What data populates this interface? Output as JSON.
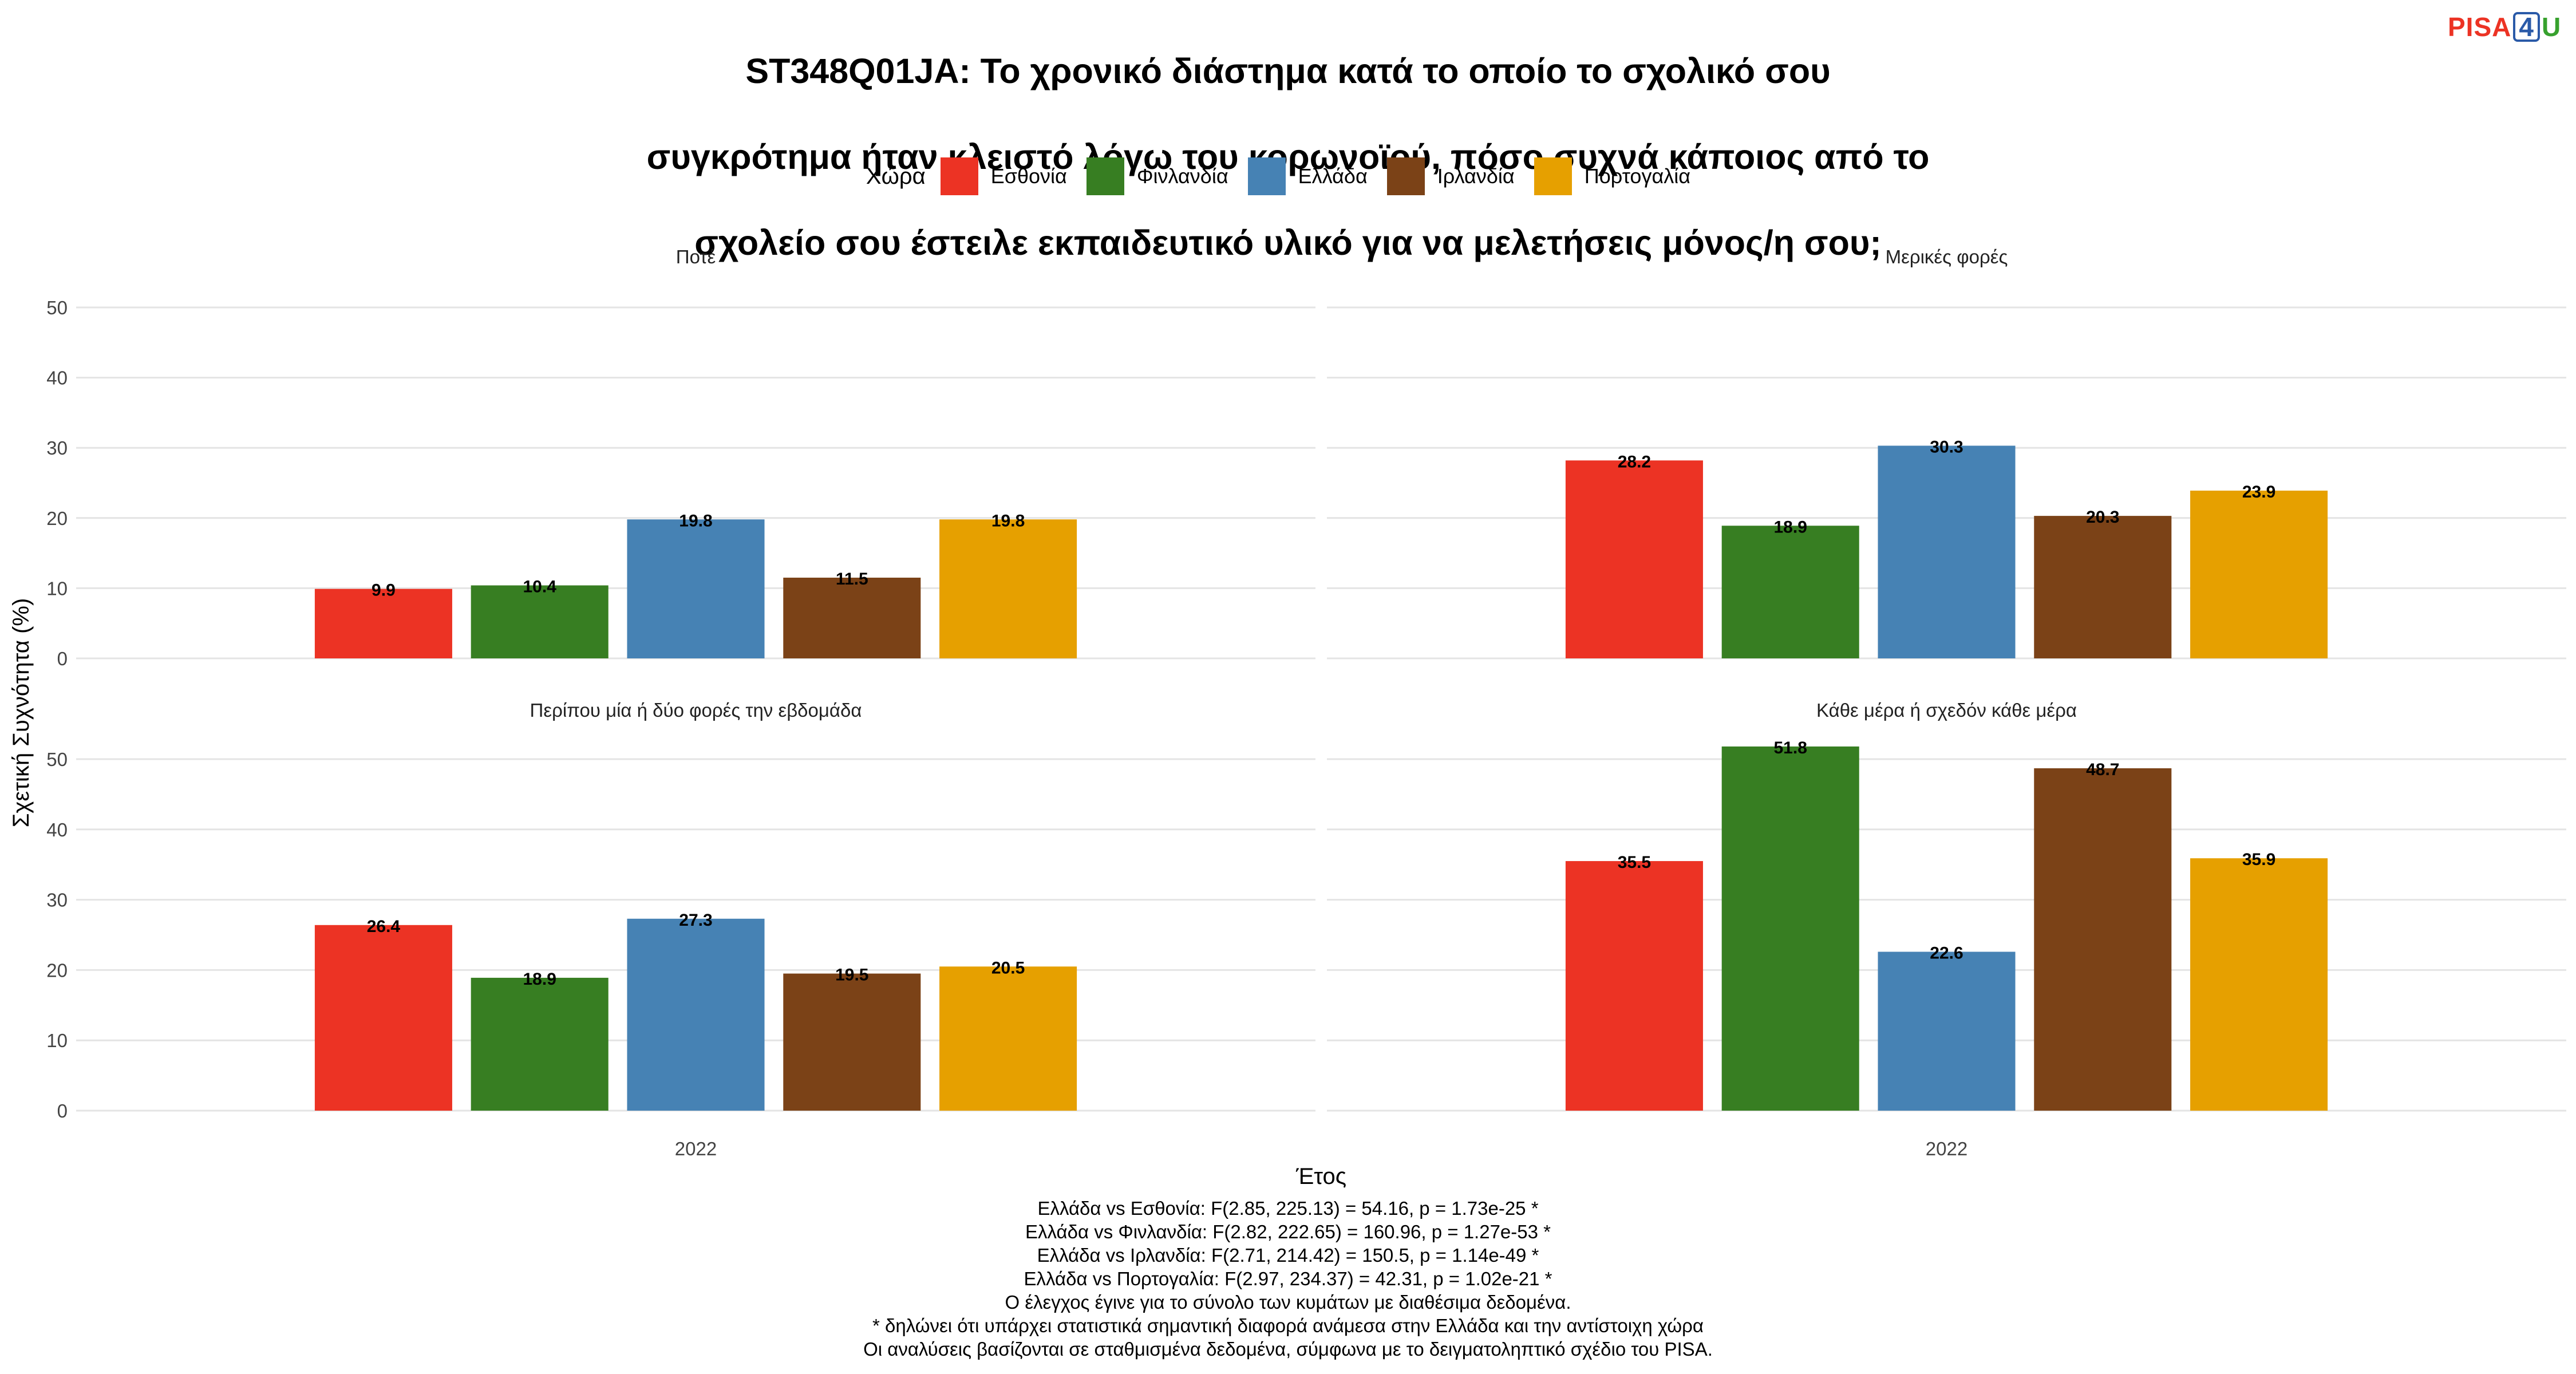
{
  "title_lines": [
    "ST348Q01JA: Το χρονικό διάστημα κατά το οποίο το σχολικό σου",
    "συγκρότημα ήταν κλειστό λόγω του κορωνοϊού, πόσο συχνά κάποιος από το",
    "σχολείο σου έστειλε εκπαιδευτικό υλικό για να μελετήσεις μόνος/η σου;"
  ],
  "logo": {
    "part1": "PISA",
    "part2": "4",
    "part3": "U"
  },
  "legend_title": "Χώρα",
  "countries": [
    {
      "name": "Εσθονία",
      "color": "#ec3324"
    },
    {
      "name": "Φινλανδία",
      "color": "#377e22"
    },
    {
      "name": "Ελλάδα",
      "color": "#4682b4"
    },
    {
      "name": "Ιρλανδία",
      "color": "#7b4217"
    },
    {
      "name": "Πορτογαλία",
      "color": "#e6a000"
    }
  ],
  "chart_data": {
    "type": "bar",
    "ylabel": "Σχετική Συχνότητα (%)",
    "xlabel": "Έτος",
    "ylim": [
      0,
      50
    ],
    "yticks": [
      0,
      10,
      20,
      30,
      40,
      50
    ],
    "x_category": "2022",
    "grid": true,
    "legend_position": "top",
    "facets": [
      {
        "title": "Ποτέ",
        "values": [
          9.9,
          10.4,
          19.8,
          11.5,
          19.8
        ]
      },
      {
        "title": "Μερικές φορές",
        "values": [
          28.2,
          18.9,
          30.3,
          20.3,
          23.9
        ]
      },
      {
        "title": "Περίπου μία ή δύο φορές την εβδομάδα",
        "values": [
          26.4,
          18.9,
          27.3,
          19.5,
          20.5
        ]
      },
      {
        "title": "Κάθε μέρα ή σχεδόν κάθε μέρα",
        "values": [
          35.5,
          51.8,
          22.6,
          48.7,
          35.9
        ]
      }
    ]
  },
  "notes": [
    "Ελλάδα vs Εσθονία: F(2.85, 225.13) = 54.16, p = 1.73e-25 *",
    "Ελλάδα vs Φινλανδία: F(2.82, 222.65) = 160.96, p = 1.27e-53 *",
    "Ελλάδα vs Ιρλανδία: F(2.71, 214.42) = 150.5, p = 1.14e-49 *",
    "Ελλάδα vs Πορτογαλία: F(2.97, 234.37) = 42.31, p = 1.02e-21 *",
    "Ο έλεγχος έγινε για το σύνολο των κυμάτων με διαθέσιμα δεδομένα.",
    "* δηλώνει ότι υπάρχει στατιστικά σημαντική διαφορά ανάμεσα στην Ελλάδα και την αντίστοιχη χώρα",
    "Οι αναλύσεις βασίζονται σε σταθμισμένα δεδομένα, σύμφωνα με το δειγματοληπτικό σχέδιο του PISA."
  ]
}
